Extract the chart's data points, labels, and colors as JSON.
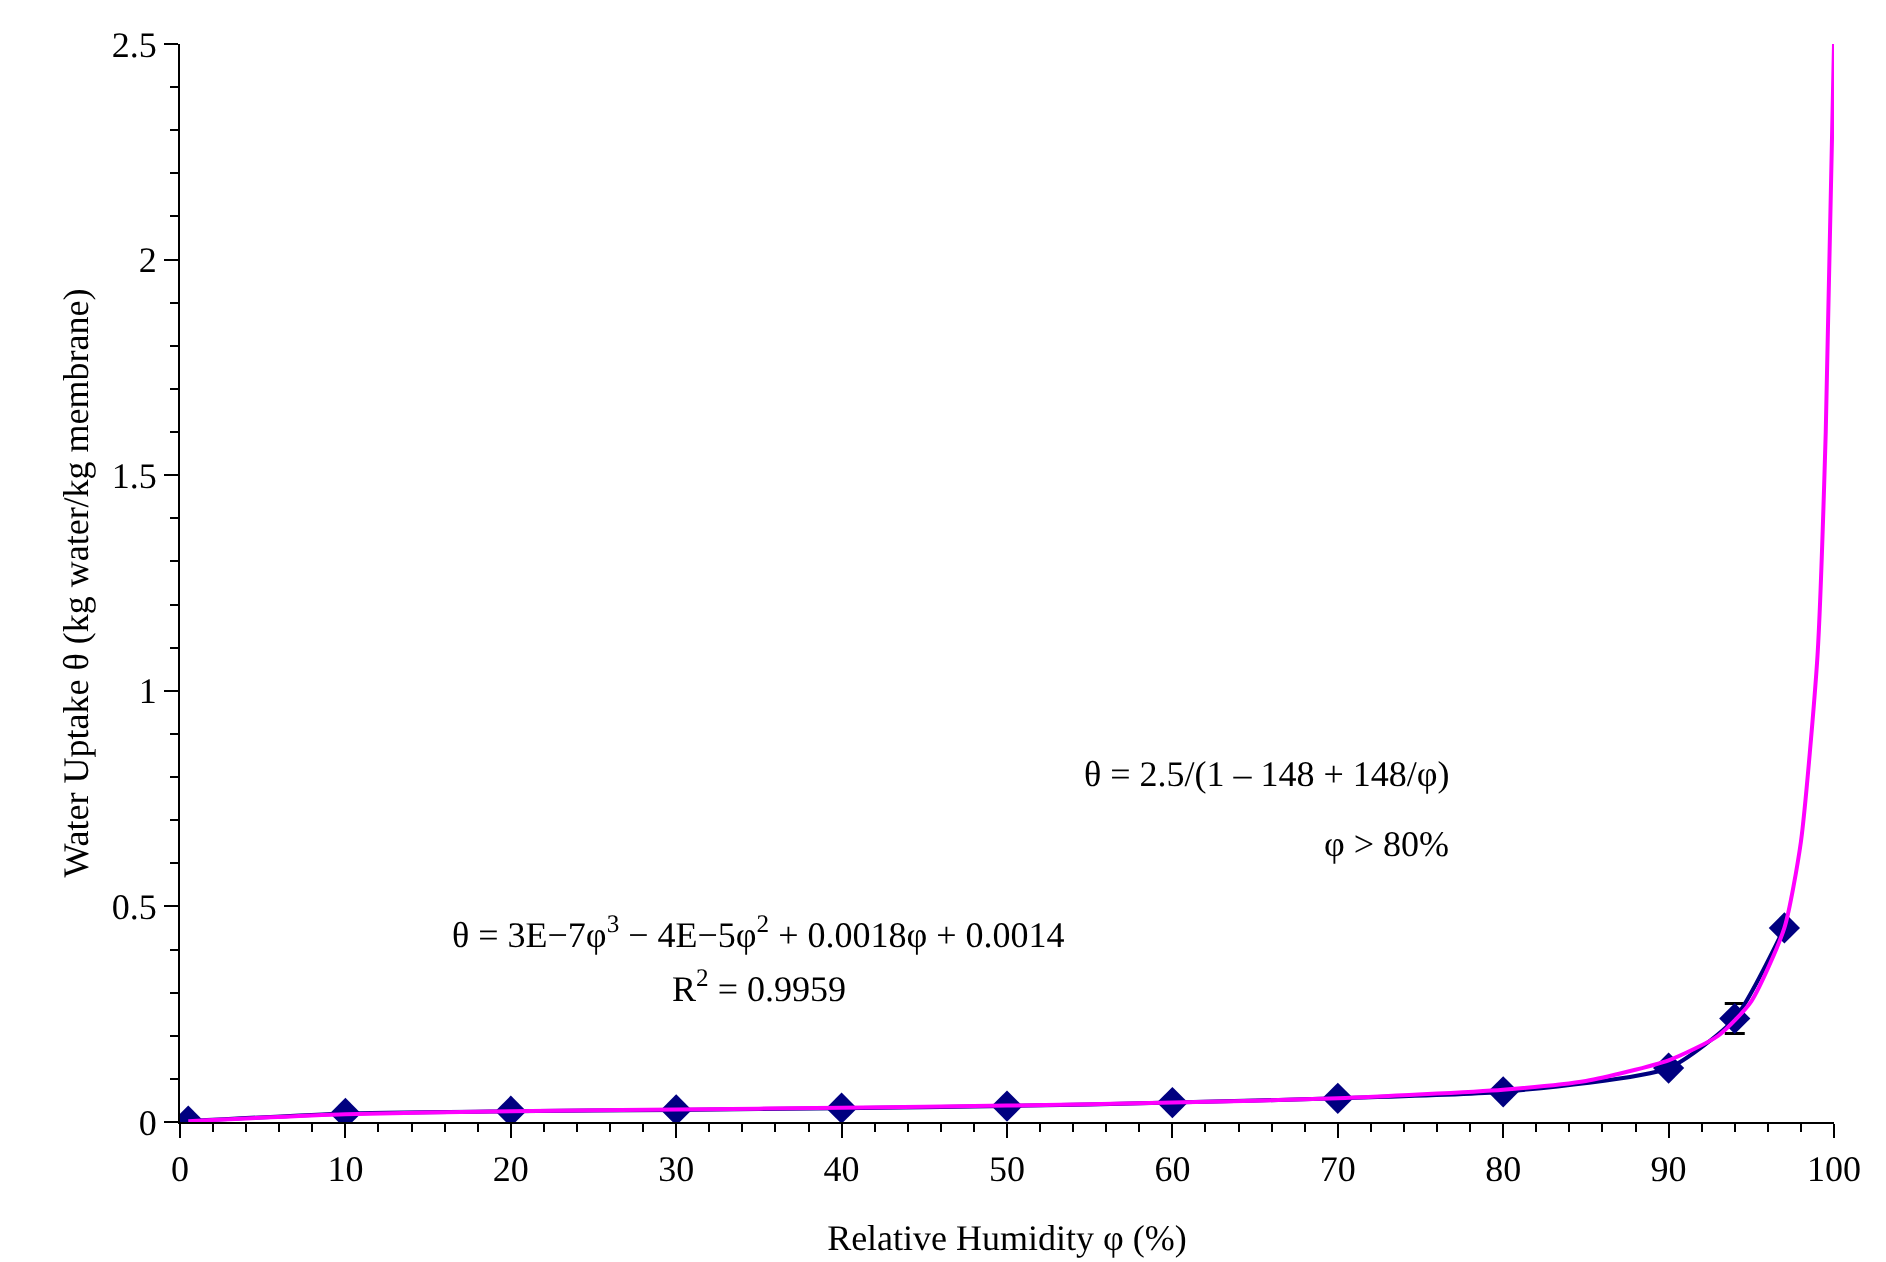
{
  "chart_data": {
    "type": "line",
    "xlabel": "Relative Humidity φ (%)",
    "ylabel": "Water Uptake θ (kg water/kg membrane)",
    "xlim": [
      0,
      100
    ],
    "xticks": [
      0,
      10,
      20,
      30,
      40,
      50,
      60,
      70,
      80,
      90,
      100
    ],
    "ylim": [
      0,
      2.5
    ],
    "yticks": [
      0,
      0.5,
      1,
      1.5,
      2,
      2.5
    ],
    "grid": false,
    "series": [
      {
        "marker": "diamond",
        "color": "#000080",
        "x": [
          0.5,
          10,
          20,
          30,
          40,
          50,
          60,
          70,
          80,
          90,
          94,
          97
        ],
        "values": [
          0.002,
          0.02,
          0.025,
          0.028,
          0.032,
          0.037,
          0.045,
          0.055,
          0.07,
          0.125,
          0.24,
          0.45
        ],
        "errors": [
          null,
          null,
          null,
          null,
          null,
          null,
          null,
          null,
          null,
          null,
          0.035,
          null
        ]
      },
      {
        "marker": "none",
        "color": "#ff00ff",
        "x": [
          0.5,
          10,
          20,
          30,
          40,
          50,
          60,
          70,
          80,
          85,
          90,
          93,
          95,
          97,
          98,
          99,
          99.5,
          100
        ],
        "values": [
          0.002,
          0.018,
          0.025,
          0.029,
          0.033,
          0.038,
          0.045,
          0.055,
          0.075,
          0.095,
          0.143,
          0.2,
          0.28,
          0.45,
          0.65,
          1.08,
          1.6,
          2.5
        ]
      }
    ],
    "annotations": [
      "θ = 3E−7φ$^{3}$ − 4E−5φ$^{2}$ + 0.0018φ + 0.0014",
      "R$^{2}$ = 0.9959",
      "θ = 2.5/(1 – 148 + 148/φ)",
      "φ > 80%"
    ]
  }
}
